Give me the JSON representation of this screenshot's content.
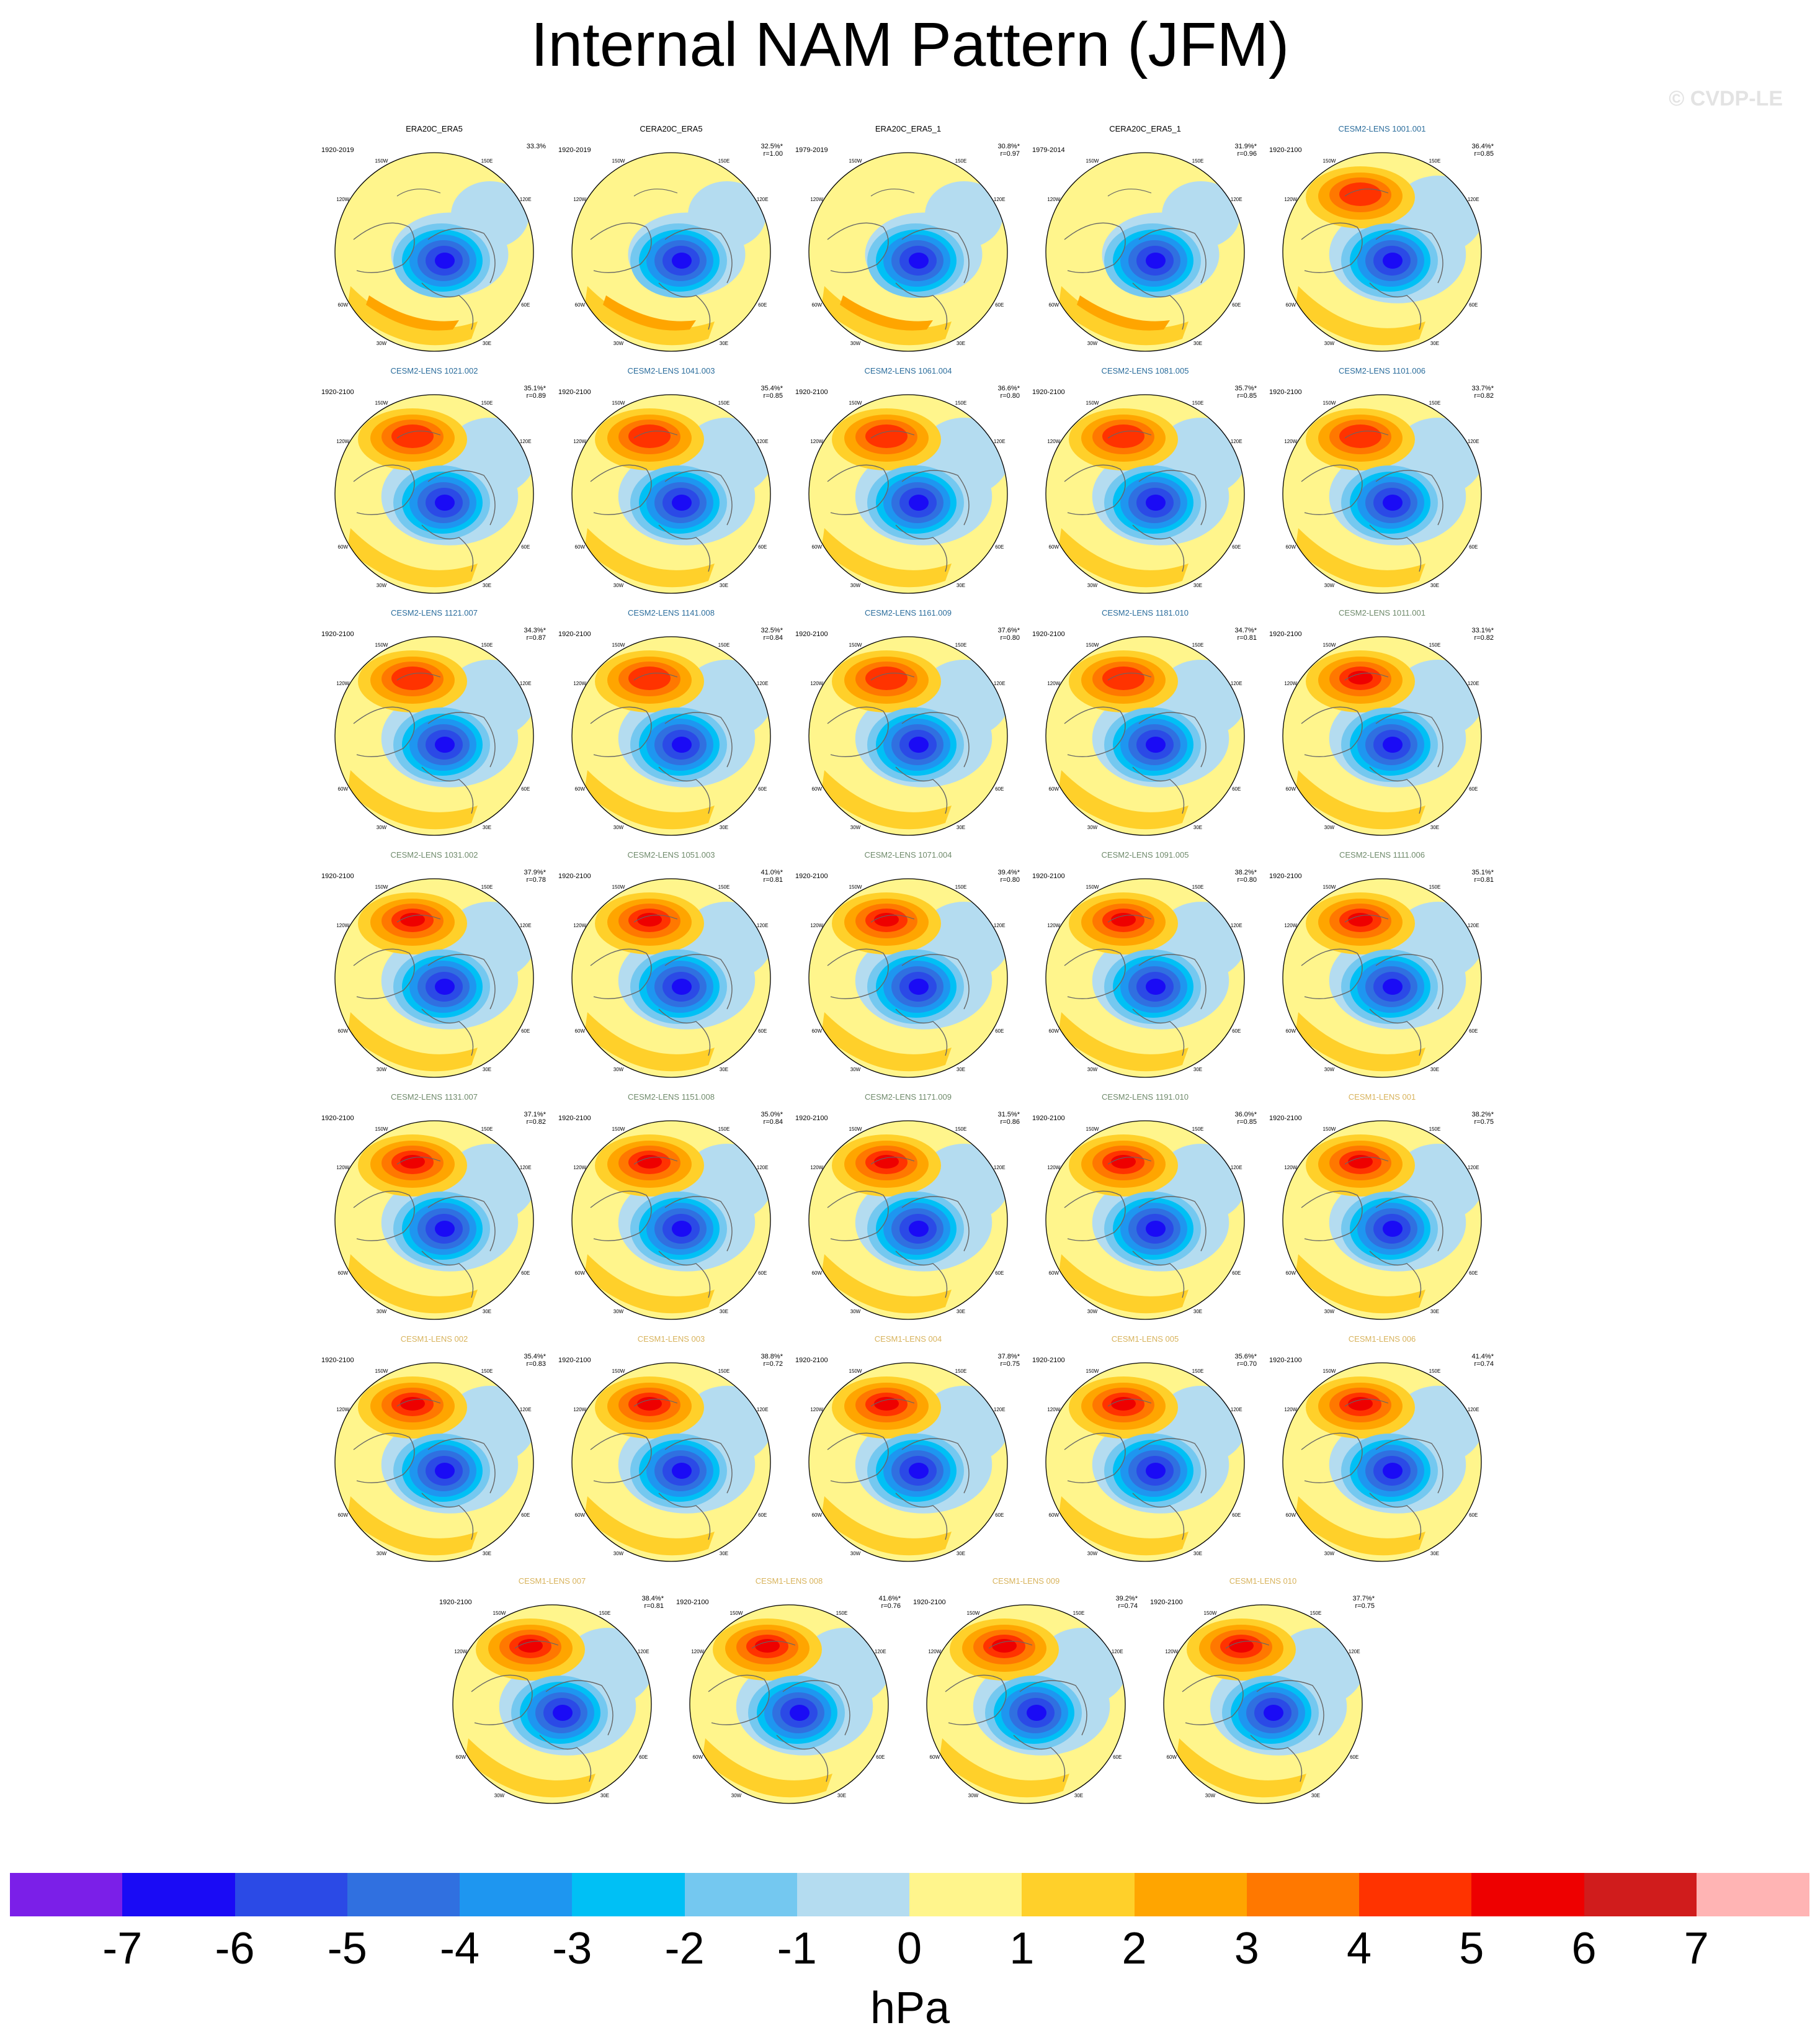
{
  "title": "Internal NAM Pattern (JFM)",
  "watermark": "© CVDP-LE",
  "panels": [
    {
      "title": "ERA20C_ERA5",
      "group": "obs",
      "years": "1920-2019",
      "pct": "33.3%",
      "r": ""
    },
    {
      "title": "CERA20C_ERA5",
      "group": "obs",
      "years": "1920-2019",
      "pct": "32.5%*",
      "r": "r=1.00"
    },
    {
      "title": "ERA20C_ERA5_1",
      "group": "obs",
      "years": "1979-2019",
      "pct": "30.8%*",
      "r": "r=0.97"
    },
    {
      "title": "CERA20C_ERA5_1",
      "group": "obs",
      "years": "1979-2014",
      "pct": "31.9%*",
      "r": "r=0.96"
    },
    {
      "title": "CESM2-LENS 1001.001",
      "group": "cesm2a",
      "years": "1920-2100",
      "pct": "36.4%*",
      "r": "r=0.85"
    },
    {
      "title": "CESM2-LENS 1021.002",
      "group": "cesm2a",
      "years": "1920-2100",
      "pct": "35.1%*",
      "r": "r=0.89"
    },
    {
      "title": "CESM2-LENS 1041.003",
      "group": "cesm2a",
      "years": "1920-2100",
      "pct": "35.4%*",
      "r": "r=0.85"
    },
    {
      "title": "CESM2-LENS 1061.004",
      "group": "cesm2a",
      "years": "1920-2100",
      "pct": "36.6%*",
      "r": "r=0.80"
    },
    {
      "title": "CESM2-LENS 1081.005",
      "group": "cesm2a",
      "years": "1920-2100",
      "pct": "35.7%*",
      "r": "r=0.85"
    },
    {
      "title": "CESM2-LENS 1101.006",
      "group": "cesm2a",
      "years": "1920-2100",
      "pct": "33.7%*",
      "r": "r=0.82"
    },
    {
      "title": "CESM2-LENS 1121.007",
      "group": "cesm2a",
      "years": "1920-2100",
      "pct": "34.3%*",
      "r": "r=0.87"
    },
    {
      "title": "CESM2-LENS 1141.008",
      "group": "cesm2a",
      "years": "1920-2100",
      "pct": "32.5%*",
      "r": "r=0.84"
    },
    {
      "title": "CESM2-LENS 1161.009",
      "group": "cesm2a",
      "years": "1920-2100",
      "pct": "37.6%*",
      "r": "r=0.80"
    },
    {
      "title": "CESM2-LENS 1181.010",
      "group": "cesm2a",
      "years": "1920-2100",
      "pct": "34.7%*",
      "r": "r=0.81"
    },
    {
      "title": "CESM2-LENS 1011.001",
      "group": "cesm2b",
      "years": "1920-2100",
      "pct": "33.1%*",
      "r": "r=0.82"
    },
    {
      "title": "CESM2-LENS 1031.002",
      "group": "cesm2b",
      "years": "1920-2100",
      "pct": "37.9%*",
      "r": "r=0.78"
    },
    {
      "title": "CESM2-LENS 1051.003",
      "group": "cesm2b",
      "years": "1920-2100",
      "pct": "41.0%*",
      "r": "r=0.81"
    },
    {
      "title": "CESM2-LENS 1071.004",
      "group": "cesm2b",
      "years": "1920-2100",
      "pct": "39.4%*",
      "r": "r=0.80"
    },
    {
      "title": "CESM2-LENS 1091.005",
      "group": "cesm2b",
      "years": "1920-2100",
      "pct": "38.2%*",
      "r": "r=0.80"
    },
    {
      "title": "CESM2-LENS 1111.006",
      "group": "cesm2b",
      "years": "1920-2100",
      "pct": "35.1%*",
      "r": "r=0.81"
    },
    {
      "title": "CESM2-LENS 1131.007",
      "group": "cesm2b",
      "years": "1920-2100",
      "pct": "37.1%*",
      "r": "r=0.82"
    },
    {
      "title": "CESM2-LENS 1151.008",
      "group": "cesm2b",
      "years": "1920-2100",
      "pct": "35.0%*",
      "r": "r=0.84"
    },
    {
      "title": "CESM2-LENS 1171.009",
      "group": "cesm2b",
      "years": "1920-2100",
      "pct": "31.5%*",
      "r": "r=0.86"
    },
    {
      "title": "CESM2-LENS 1191.010",
      "group": "cesm2b",
      "years": "1920-2100",
      "pct": "36.0%*",
      "r": "r=0.85"
    },
    {
      "title": "CESM1-LENS 001",
      "group": "cesm1",
      "years": "1920-2100",
      "pct": "38.2%*",
      "r": "r=0.75"
    },
    {
      "title": "CESM1-LENS 002",
      "group": "cesm1",
      "years": "1920-2100",
      "pct": "35.4%*",
      "r": "r=0.83"
    },
    {
      "title": "CESM1-LENS 003",
      "group": "cesm1",
      "years": "1920-2100",
      "pct": "38.8%*",
      "r": "r=0.72"
    },
    {
      "title": "CESM1-LENS 004",
      "group": "cesm1",
      "years": "1920-2100",
      "pct": "37.8%*",
      "r": "r=0.75"
    },
    {
      "title": "CESM1-LENS 005",
      "group": "cesm1",
      "years": "1920-2100",
      "pct": "35.6%*",
      "r": "r=0.70"
    },
    {
      "title": "CESM1-LENS 006",
      "group": "cesm1",
      "years": "1920-2100",
      "pct": "41.4%*",
      "r": "r=0.74"
    },
    {
      "title": "CESM1-LENS 007",
      "group": "cesm1",
      "years": "1920-2100",
      "pct": "38.4%*",
      "r": "r=0.81"
    },
    {
      "title": "CESM1-LENS 008",
      "group": "cesm1",
      "years": "1920-2100",
      "pct": "41.6%*",
      "r": "r=0.76"
    },
    {
      "title": "CESM1-LENS 009",
      "group": "cesm1",
      "years": "1920-2100",
      "pct": "39.2%*",
      "r": "r=0.74"
    },
    {
      "title": "CESM1-LENS 010",
      "group": "cesm1",
      "years": "1920-2100",
      "pct": "37.7%*",
      "r": "r=0.75"
    }
  ],
  "group_colors": {
    "obs": "#000000",
    "cesm2a": "#2b6d9c",
    "cesm2b": "#6f8a6b",
    "cesm1": "#d8b35c"
  },
  "longitude_labels": [
    "180",
    "150E",
    "120E",
    "90E",
    "60E",
    "30E",
    "0",
    "30W",
    "60W",
    "90W",
    "120W",
    "150W"
  ],
  "colorbar": {
    "colors": [
      "#7b1fe8",
      "#1a0bf5",
      "#2b4ae6",
      "#3070e0",
      "#1e96f0",
      "#00c0f5",
      "#74c8f0",
      "#b4dcf0",
      "#fff58c",
      "#ffd02a",
      "#ffa500",
      "#ff7800",
      "#ff3300",
      "#ee0000",
      "#d01c1c",
      "#ffb4b4"
    ],
    "ticks": [
      "-7",
      "-6",
      "-5",
      "-4",
      "-3",
      "-2",
      "-1",
      "0",
      "1",
      "2",
      "3",
      "4",
      "5",
      "6",
      "7"
    ],
    "units": "hPa"
  }
}
